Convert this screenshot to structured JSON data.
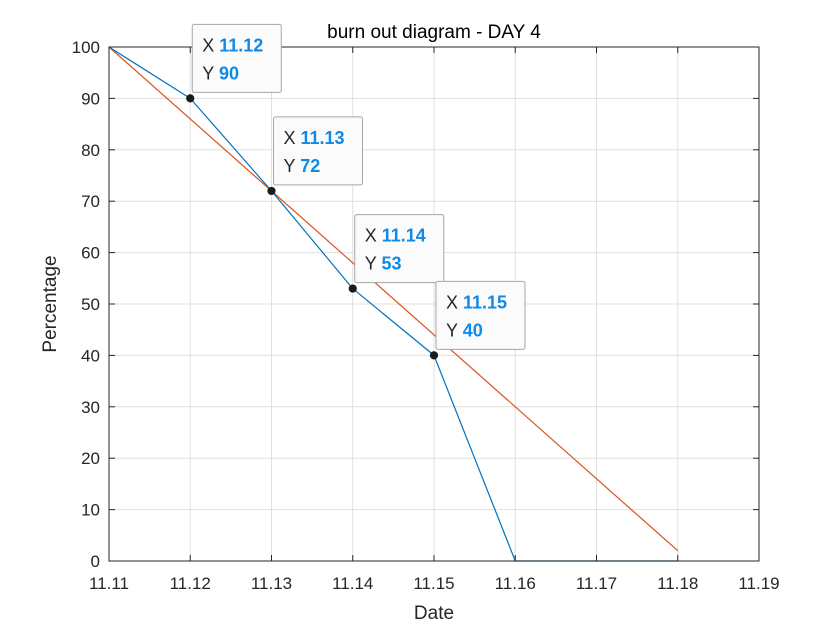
{
  "chart_data": {
    "type": "line",
    "title": "burn out diagram - DAY 4",
    "xlabel": "Date",
    "ylabel": "Percentage",
    "xlim": [
      11.11,
      11.19
    ],
    "ylim": [
      0,
      100
    ],
    "x_ticks": [
      "11.11",
      "11.12",
      "11.13",
      "11.14",
      "11.15",
      "11.16",
      "11.17",
      "11.18",
      "11.19"
    ],
    "y_ticks": [
      "0",
      "10",
      "20",
      "30",
      "40",
      "50",
      "60",
      "70",
      "80",
      "90",
      "100"
    ],
    "grid": true,
    "series": [
      {
        "color": "#0072BD",
        "x": [
          11.11,
          11.12,
          11.13,
          11.14,
          11.15,
          11.16,
          11.18
        ],
        "y": [
          100,
          90,
          72,
          53,
          40,
          0,
          0
        ]
      },
      {
        "color": "#D95319",
        "x": [
          11.11,
          11.18
        ],
        "y": [
          100,
          2
        ]
      }
    ],
    "datatips": [
      {
        "x": "11.12",
        "y": "90"
      },
      {
        "x": "11.13",
        "y": "72"
      },
      {
        "x": "11.14",
        "y": "53"
      },
      {
        "x": "11.15",
        "y": "40"
      }
    ],
    "datatip_value_color": "#0F8AE6"
  }
}
